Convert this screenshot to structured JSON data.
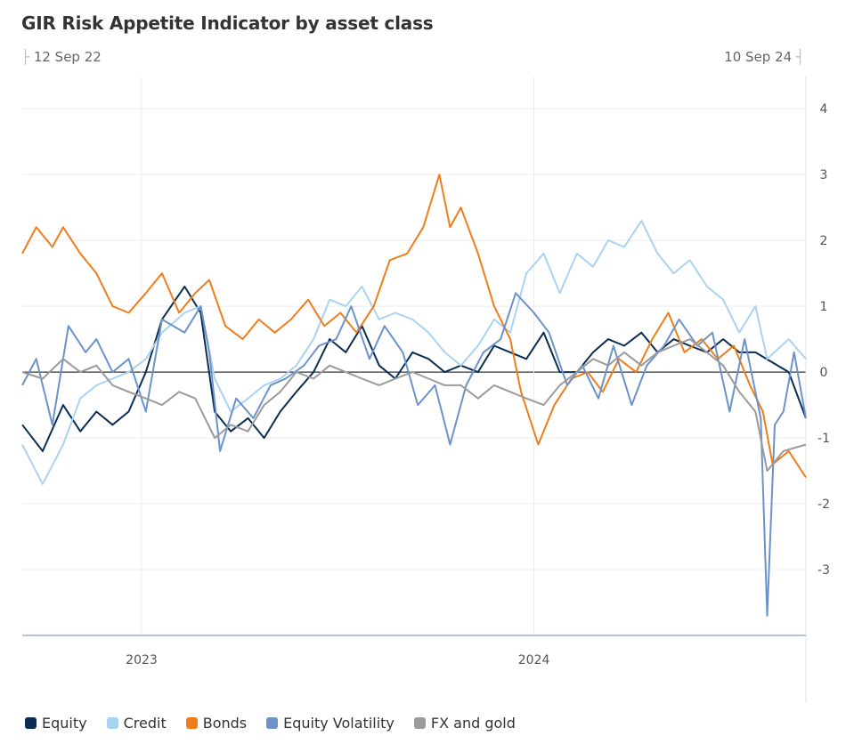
{
  "header": {
    "title": "GIR Risk Appetite Indicator by asset class",
    "range_start": "12 Sep 22",
    "range_end": "10 Sep 24"
  },
  "chart_data": {
    "type": "line",
    "title": "GIR Risk Appetite Indicator by asset class",
    "x_range": [
      "2022-09-12",
      "2024-09-10"
    ],
    "x_tick_labels": [
      "2023",
      "2024"
    ],
    "y_tick_labels": [
      "4",
      "3",
      "2",
      "1",
      "0",
      "-1",
      "-2",
      "-3"
    ],
    "ylim": [
      -4,
      4.3
    ],
    "grid": true,
    "legend_position": "bottom",
    "series": [
      {
        "name": "Equity",
        "color": "#0b2d54",
        "points": [
          [
            "2022-09-12",
            -0.8
          ],
          [
            "2022-10-01",
            -1.2
          ],
          [
            "2022-10-20",
            -0.5
          ],
          [
            "2022-11-05",
            -0.9
          ],
          [
            "2022-11-20",
            -0.6
          ],
          [
            "2022-12-05",
            -0.8
          ],
          [
            "2022-12-20",
            -0.6
          ],
          [
            "2023-01-05",
            0.0
          ],
          [
            "2023-01-20",
            0.8
          ],
          [
            "2023-02-10",
            1.3
          ],
          [
            "2023-02-25",
            0.9
          ],
          [
            "2023-03-10",
            -0.6
          ],
          [
            "2023-03-25",
            -0.9
          ],
          [
            "2023-04-10",
            -0.7
          ],
          [
            "2023-04-25",
            -1.0
          ],
          [
            "2023-05-10",
            -0.6
          ],
          [
            "2023-05-25",
            -0.3
          ],
          [
            "2023-06-10",
            0.0
          ],
          [
            "2023-06-25",
            0.5
          ],
          [
            "2023-07-10",
            0.3
          ],
          [
            "2023-07-25",
            0.7
          ],
          [
            "2023-08-10",
            0.1
          ],
          [
            "2023-08-25",
            -0.1
          ],
          [
            "2023-09-10",
            0.3
          ],
          [
            "2023-09-25",
            0.2
          ],
          [
            "2023-10-10",
            0.0
          ],
          [
            "2023-10-25",
            0.1
          ],
          [
            "2023-11-10",
            0.0
          ],
          [
            "2023-11-25",
            0.4
          ],
          [
            "2023-12-10",
            0.3
          ],
          [
            "2023-12-25",
            0.2
          ],
          [
            "2024-01-10",
            0.6
          ],
          [
            "2024-01-25",
            0.0
          ],
          [
            "2024-02-10",
            0.0
          ],
          [
            "2024-02-25",
            0.3
          ],
          [
            "2024-03-10",
            0.5
          ],
          [
            "2024-03-25",
            0.4
          ],
          [
            "2024-04-10",
            0.6
          ],
          [
            "2024-04-25",
            0.3
          ],
          [
            "2024-05-10",
            0.5
          ],
          [
            "2024-05-25",
            0.4
          ],
          [
            "2024-06-10",
            0.3
          ],
          [
            "2024-06-25",
            0.5
          ],
          [
            "2024-07-10",
            0.3
          ],
          [
            "2024-07-25",
            0.3
          ],
          [
            "2024-08-25",
            0.0
          ],
          [
            "2024-09-10",
            -0.7
          ]
        ]
      },
      {
        "name": "Credit",
        "color": "#a9d3f2",
        "points": [
          [
            "2022-09-12",
            -1.1
          ],
          [
            "2022-10-01",
            -1.7
          ],
          [
            "2022-10-20",
            -1.1
          ],
          [
            "2022-11-05",
            -0.4
          ],
          [
            "2022-11-20",
            -0.2
          ],
          [
            "2022-12-05",
            -0.1
          ],
          [
            "2022-12-20",
            0.0
          ],
          [
            "2023-01-05",
            0.2
          ],
          [
            "2023-01-20",
            0.6
          ],
          [
            "2023-02-10",
            0.9
          ],
          [
            "2023-02-25",
            1.0
          ],
          [
            "2023-03-10",
            -0.1
          ],
          [
            "2023-03-25",
            -0.6
          ],
          [
            "2023-04-10",
            -0.4
          ],
          [
            "2023-04-25",
            -0.2
          ],
          [
            "2023-05-10",
            -0.1
          ],
          [
            "2023-05-25",
            0.1
          ],
          [
            "2023-06-10",
            0.5
          ],
          [
            "2023-06-25",
            1.1
          ],
          [
            "2023-07-10",
            1.0
          ],
          [
            "2023-07-25",
            1.3
          ],
          [
            "2023-08-10",
            0.8
          ],
          [
            "2023-08-25",
            0.9
          ],
          [
            "2023-09-10",
            0.8
          ],
          [
            "2023-09-25",
            0.6
          ],
          [
            "2023-10-10",
            0.3
          ],
          [
            "2023-10-25",
            0.1
          ],
          [
            "2023-11-10",
            0.4
          ],
          [
            "2023-11-25",
            0.8
          ],
          [
            "2023-12-10",
            0.6
          ],
          [
            "2023-12-25",
            1.5
          ],
          [
            "2024-01-10",
            1.8
          ],
          [
            "2024-01-25",
            1.2
          ],
          [
            "2024-02-10",
            1.8
          ],
          [
            "2024-02-25",
            1.6
          ],
          [
            "2024-03-10",
            2.0
          ],
          [
            "2024-03-25",
            1.9
          ],
          [
            "2024-04-10",
            2.3
          ],
          [
            "2024-04-25",
            1.8
          ],
          [
            "2024-05-10",
            1.5
          ],
          [
            "2024-05-25",
            1.7
          ],
          [
            "2024-06-10",
            1.3
          ],
          [
            "2024-06-25",
            1.1
          ],
          [
            "2024-07-10",
            0.6
          ],
          [
            "2024-07-25",
            1.0
          ],
          [
            "2024-08-05",
            0.2
          ],
          [
            "2024-08-25",
            0.5
          ],
          [
            "2024-09-10",
            0.2
          ]
        ]
      },
      {
        "name": "Bonds",
        "color": "#f07d1b",
        "points": [
          [
            "2022-09-12",
            1.8
          ],
          [
            "2022-09-25",
            2.2
          ],
          [
            "2022-10-10",
            1.9
          ],
          [
            "2022-10-20",
            2.2
          ],
          [
            "2022-11-05",
            1.8
          ],
          [
            "2022-11-20",
            1.5
          ],
          [
            "2022-12-05",
            1.0
          ],
          [
            "2022-12-20",
            0.9
          ],
          [
            "2023-01-05",
            1.2
          ],
          [
            "2023-01-20",
            1.5
          ],
          [
            "2023-02-05",
            0.9
          ],
          [
            "2023-02-20",
            1.2
          ],
          [
            "2023-03-05",
            1.4
          ],
          [
            "2023-03-20",
            0.7
          ],
          [
            "2023-04-05",
            0.5
          ],
          [
            "2023-04-20",
            0.8
          ],
          [
            "2023-05-05",
            0.6
          ],
          [
            "2023-05-20",
            0.8
          ],
          [
            "2023-06-05",
            1.1
          ],
          [
            "2023-06-20",
            0.7
          ],
          [
            "2023-07-05",
            0.9
          ],
          [
            "2023-07-20",
            0.6
          ],
          [
            "2023-08-05",
            1.0
          ],
          [
            "2023-08-20",
            1.7
          ],
          [
            "2023-09-05",
            1.8
          ],
          [
            "2023-09-20",
            2.2
          ],
          [
            "2023-10-05",
            3.0
          ],
          [
            "2023-10-15",
            2.2
          ],
          [
            "2023-10-25",
            2.5
          ],
          [
            "2023-11-10",
            1.8
          ],
          [
            "2023-11-25",
            1.0
          ],
          [
            "2023-12-10",
            0.5
          ],
          [
            "2023-12-20",
            -0.3
          ],
          [
            "2024-01-05",
            -1.1
          ],
          [
            "2024-01-20",
            -0.5
          ],
          [
            "2024-02-05",
            -0.1
          ],
          [
            "2024-02-20",
            0.0
          ],
          [
            "2024-03-05",
            -0.3
          ],
          [
            "2024-03-20",
            0.2
          ],
          [
            "2024-04-05",
            0.0
          ],
          [
            "2024-04-20",
            0.5
          ],
          [
            "2024-05-05",
            0.9
          ],
          [
            "2024-05-20",
            0.3
          ],
          [
            "2024-06-05",
            0.5
          ],
          [
            "2024-06-20",
            0.2
          ],
          [
            "2024-07-05",
            0.4
          ],
          [
            "2024-07-20",
            -0.2
          ],
          [
            "2024-08-01",
            -0.6
          ],
          [
            "2024-08-10",
            -1.4
          ],
          [
            "2024-08-25",
            -1.2
          ],
          [
            "2024-09-10",
            -1.6
          ]
        ]
      },
      {
        "name": "Equity Volatility",
        "color": "#6b93c9",
        "points": [
          [
            "2022-09-12",
            -0.2
          ],
          [
            "2022-09-25",
            0.2
          ],
          [
            "2022-10-10",
            -0.8
          ],
          [
            "2022-10-25",
            0.7
          ],
          [
            "2022-11-10",
            0.3
          ],
          [
            "2022-11-20",
            0.5
          ],
          [
            "2022-12-05",
            0.0
          ],
          [
            "2022-12-20",
            0.2
          ],
          [
            "2023-01-05",
            -0.6
          ],
          [
            "2023-01-20",
            0.8
          ],
          [
            "2023-02-10",
            0.6
          ],
          [
            "2023-02-25",
            1.0
          ],
          [
            "2023-03-05",
            0.3
          ],
          [
            "2023-03-15",
            -1.2
          ],
          [
            "2023-03-30",
            -0.4
          ],
          [
            "2023-04-15",
            -0.7
          ],
          [
            "2023-05-01",
            -0.2
          ],
          [
            "2023-05-15",
            -0.1
          ],
          [
            "2023-06-01",
            0.1
          ],
          [
            "2023-06-15",
            0.4
          ],
          [
            "2023-07-01",
            0.5
          ],
          [
            "2023-07-15",
            1.0
          ],
          [
            "2023-08-01",
            0.2
          ],
          [
            "2023-08-15",
            0.7
          ],
          [
            "2023-09-01",
            0.3
          ],
          [
            "2023-09-15",
            -0.5
          ],
          [
            "2023-10-01",
            -0.2
          ],
          [
            "2023-10-15",
            -1.1
          ],
          [
            "2023-10-30",
            -0.2
          ],
          [
            "2023-11-15",
            0.3
          ],
          [
            "2023-12-01",
            0.5
          ],
          [
            "2023-12-15",
            1.2
          ],
          [
            "2024-01-01",
            0.9
          ],
          [
            "2024-01-15",
            0.6
          ],
          [
            "2024-02-01",
            -0.2
          ],
          [
            "2024-02-15",
            0.1
          ],
          [
            "2024-03-01",
            -0.4
          ],
          [
            "2024-03-15",
            0.4
          ],
          [
            "2024-04-01",
            -0.5
          ],
          [
            "2024-04-15",
            0.1
          ],
          [
            "2024-05-01",
            0.4
          ],
          [
            "2024-05-15",
            0.8
          ],
          [
            "2024-06-01",
            0.4
          ],
          [
            "2024-06-15",
            0.6
          ],
          [
            "2024-07-01",
            -0.6
          ],
          [
            "2024-07-15",
            0.5
          ],
          [
            "2024-07-30",
            -0.7
          ],
          [
            "2024-08-05",
            -3.7
          ],
          [
            "2024-08-12",
            -0.8
          ],
          [
            "2024-08-20",
            -0.6
          ],
          [
            "2024-08-30",
            0.3
          ],
          [
            "2024-09-10",
            -0.7
          ]
        ]
      },
      {
        "name": "FX and gold",
        "color": "#9b9b9b",
        "points": [
          [
            "2022-09-12",
            0.0
          ],
          [
            "2022-10-01",
            -0.1
          ],
          [
            "2022-10-20",
            0.2
          ],
          [
            "2022-11-05",
            0.0
          ],
          [
            "2022-11-20",
            0.1
          ],
          [
            "2022-12-05",
            -0.2
          ],
          [
            "2022-12-20",
            -0.3
          ],
          [
            "2023-01-05",
            -0.4
          ],
          [
            "2023-01-20",
            -0.5
          ],
          [
            "2023-02-05",
            -0.3
          ],
          [
            "2023-02-20",
            -0.4
          ],
          [
            "2023-03-10",
            -1.0
          ],
          [
            "2023-03-25",
            -0.8
          ],
          [
            "2023-04-10",
            -0.9
          ],
          [
            "2023-04-25",
            -0.5
          ],
          [
            "2023-05-10",
            -0.3
          ],
          [
            "2023-05-25",
            0.0
          ],
          [
            "2023-06-10",
            -0.1
          ],
          [
            "2023-06-25",
            0.1
          ],
          [
            "2023-07-10",
            0.0
          ],
          [
            "2023-07-25",
            -0.1
          ],
          [
            "2023-08-10",
            -0.2
          ],
          [
            "2023-08-25",
            -0.1
          ],
          [
            "2023-09-10",
            0.0
          ],
          [
            "2023-09-25",
            -0.1
          ],
          [
            "2023-10-10",
            -0.2
          ],
          [
            "2023-10-25",
            -0.2
          ],
          [
            "2023-11-10",
            -0.4
          ],
          [
            "2023-11-25",
            -0.2
          ],
          [
            "2023-12-10",
            -0.3
          ],
          [
            "2023-12-25",
            -0.4
          ],
          [
            "2024-01-10",
            -0.5
          ],
          [
            "2024-01-25",
            -0.2
          ],
          [
            "2024-02-10",
            0.0
          ],
          [
            "2024-02-25",
            0.2
          ],
          [
            "2024-03-10",
            0.1
          ],
          [
            "2024-03-25",
            0.3
          ],
          [
            "2024-04-10",
            0.1
          ],
          [
            "2024-04-25",
            0.3
          ],
          [
            "2024-05-10",
            0.4
          ],
          [
            "2024-05-25",
            0.5
          ],
          [
            "2024-06-10",
            0.3
          ],
          [
            "2024-06-25",
            0.1
          ],
          [
            "2024-07-10",
            -0.3
          ],
          [
            "2024-07-25",
            -0.6
          ],
          [
            "2024-08-05",
            -1.5
          ],
          [
            "2024-08-20",
            -1.2
          ],
          [
            "2024-09-10",
            -1.1
          ]
        ]
      }
    ]
  }
}
